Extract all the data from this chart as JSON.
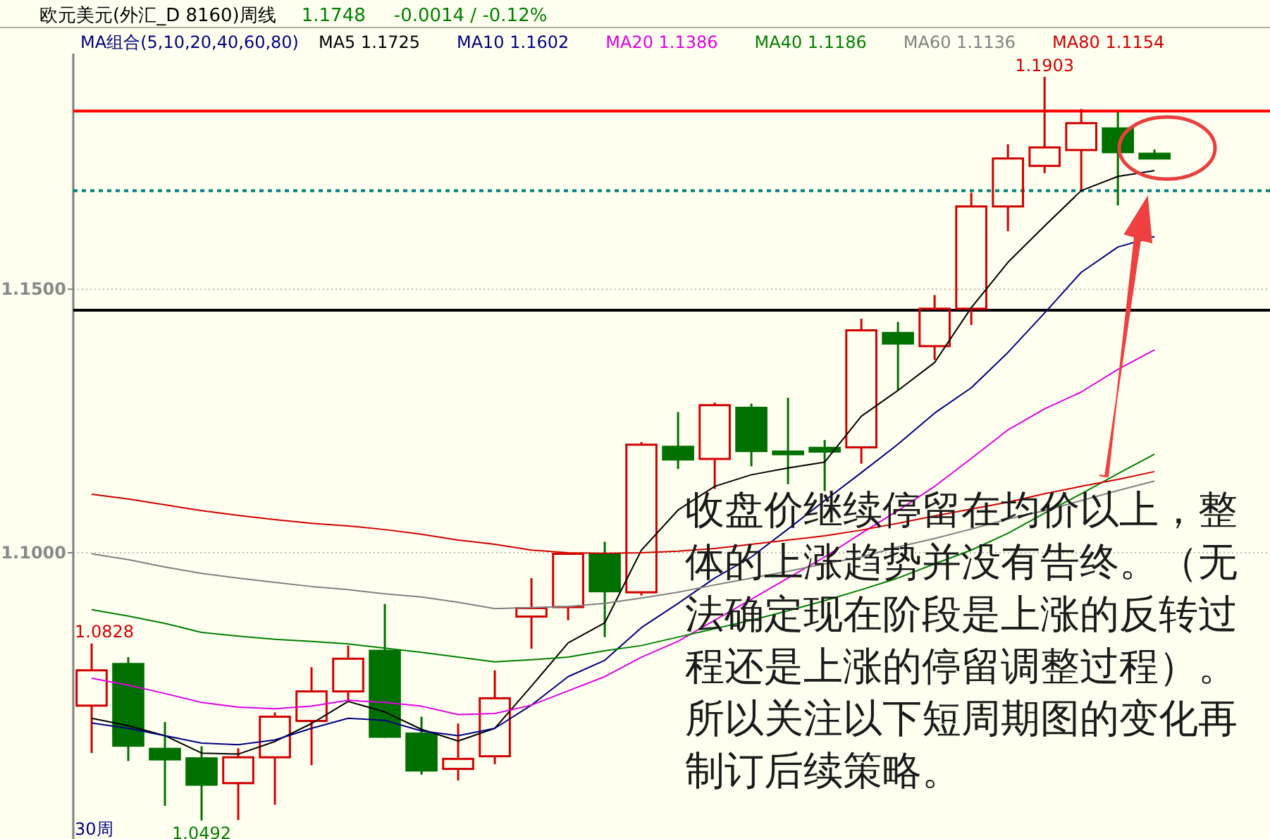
{
  "chart_data": {
    "type": "candlestick",
    "title": "欧元美元(外汇_D 8160)周线",
    "legend_title": "MA组合(5,10,20,40,60,80)",
    "legend": "top",
    "grid": "y",
    "tick_labels": "y",
    "categories": [
      null,
      null,
      null,
      null,
      null,
      null,
      null,
      null,
      null,
      null,
      null,
      null,
      null,
      null,
      null,
      null,
      null,
      null,
      null,
      null,
      null,
      null,
      null,
      null,
      null,
      null,
      null,
      null,
      null,
      null
    ],
    "ohlc": [
      [
        1.071,
        1.0828,
        1.062,
        1.0777
      ],
      [
        1.0789,
        1.0802,
        1.0605,
        1.0634
      ],
      [
        1.0628,
        1.0679,
        1.052,
        1.0608
      ],
      [
        1.061,
        1.0633,
        1.0492,
        1.056
      ],
      [
        1.0563,
        1.0629,
        1.0493,
        1.0612
      ],
      [
        1.0612,
        1.0697,
        1.0522,
        1.0689
      ],
      [
        1.0681,
        1.0783,
        1.0597,
        1.0737
      ],
      [
        1.0737,
        1.0824,
        1.0718,
        1.0799
      ],
      [
        1.0814,
        1.0903,
        1.0649,
        1.0651
      ],
      [
        1.0657,
        1.0689,
        1.0579,
        1.0587
      ],
      [
        1.059,
        1.0676,
        1.0568,
        1.0609
      ],
      [
        1.0614,
        1.0777,
        1.0599,
        1.0724
      ],
      [
        1.0879,
        1.0952,
        1.0818,
        1.0895
      ],
      [
        1.0897,
        1.0998,
        1.0872,
        1.0998
      ],
      [
        1.0998,
        1.1021,
        1.084,
        1.0927
      ],
      [
        1.0925,
        1.121,
        1.0919,
        1.1205
      ],
      [
        1.1201,
        1.1267,
        1.1159,
        1.1177
      ],
      [
        1.1178,
        1.1285,
        1.1121,
        1.128
      ],
      [
        1.1275,
        1.1283,
        1.1164,
        1.1193
      ],
      [
        1.1192,
        1.1294,
        1.113,
        1.1187
      ],
      [
        1.1199,
        1.1214,
        1.1117,
        1.1192
      ],
      [
        1.12,
        1.1444,
        1.1169,
        1.1422
      ],
      [
        1.1417,
        1.1438,
        1.1308,
        1.1397
      ],
      [
        1.1392,
        1.1489,
        1.1366,
        1.1463
      ],
      [
        1.1463,
        1.1683,
        1.1432,
        1.1657
      ],
      [
        1.1657,
        1.1775,
        1.161,
        1.1748
      ],
      [
        1.1734,
        1.1903,
        1.172,
        1.1769
      ],
      [
        1.1764,
        1.1842,
        1.1689,
        1.1815
      ],
      [
        1.1805,
        1.1836,
        1.1659,
        1.176
      ],
      [
        1.1757,
        1.1765,
        1.1747,
        1.1748
      ]
    ],
    "series": [
      {
        "name": "MA5 1.1725",
        "type": "line",
        "color": "#000000",
        "values": [
          1.0686,
          1.0672,
          1.0653,
          1.062,
          1.0618,
          1.0642,
          1.0676,
          1.0718,
          1.0698,
          1.0665,
          1.0643,
          1.0667,
          1.0747,
          1.0829,
          1.0867,
          1.1005,
          1.1081,
          1.1126,
          1.1148,
          1.1161,
          1.1172,
          1.1259,
          1.1308,
          1.1361,
          1.1465,
          1.1551,
          1.162,
          1.1687,
          1.1714,
          1.1725
        ]
      },
      {
        "name": "MA10 1.1602",
        "type": "line",
        "color": "#000080",
        "values": [
          1.0677,
          1.0667,
          1.0653,
          1.0639,
          1.0636,
          1.0645,
          1.0667,
          1.0686,
          1.0682,
          1.0662,
          1.0653,
          1.0667,
          1.0711,
          1.0765,
          1.0796,
          1.0858,
          1.0904,
          1.0952,
          1.0992,
          1.1045,
          1.1099,
          1.1152,
          1.1206,
          1.1265,
          1.1313,
          1.138,
          1.1455,
          1.1532,
          1.158,
          1.16
        ]
      },
      {
        "name": "MA20 1.1386",
        "type": "line",
        "color": "#e000e0",
        "values": [
          1.0762,
          1.0749,
          1.0733,
          1.0716,
          1.0707,
          1.0704,
          1.0709,
          1.072,
          1.0716,
          1.0709,
          1.0693,
          1.0695,
          1.0711,
          1.0738,
          1.0765,
          1.0802,
          1.0832,
          1.0872,
          1.0912,
          1.0952,
          1.0992,
          1.1037,
          1.108,
          1.1126,
          1.1179,
          1.1233,
          1.1273,
          1.1305,
          1.1348,
          1.1385
        ]
      },
      {
        "name": "MA40 1.1186",
        "type": "line",
        "color": "#008000",
        "values": [
          1.0892,
          1.088,
          1.0866,
          1.0849,
          1.0842,
          1.0836,
          1.0832,
          1.0827,
          1.0819,
          1.0811,
          1.0802,
          1.0793,
          1.0797,
          1.0802,
          1.0814,
          1.0824,
          1.084,
          1.0856,
          1.0872,
          1.089,
          1.0909,
          1.093,
          1.0952,
          1.0979,
          1.1005,
          1.1037,
          1.1075,
          1.1112,
          1.115,
          1.1187
        ]
      },
      {
        "name": "MA60 1.1136",
        "type": "line",
        "color": "#808080",
        "values": [
          1.0998,
          1.0987,
          1.0973,
          1.0961,
          1.0952,
          1.0944,
          1.0936,
          1.093,
          1.0922,
          1.0916,
          1.0906,
          1.0894,
          1.0896,
          1.0898,
          1.0904,
          1.0914,
          1.0925,
          1.0939,
          1.0952,
          1.0965,
          1.0979,
          1.0992,
          1.1011,
          1.1027,
          1.1045,
          1.1064,
          1.108,
          1.1099,
          1.1118,
          1.1136
        ]
      },
      {
        "name": "MA80 1.1154",
        "type": "line",
        "color": "#d00000",
        "values": [
          1.1111,
          1.1102,
          1.1091,
          1.108,
          1.1071,
          1.1063,
          1.1056,
          1.1051,
          1.1044,
          1.1035,
          1.1024,
          1.1016,
          1.1005,
          1.1,
          1.0999,
          1.1,
          1.1003,
          1.1008,
          1.1016,
          1.1024,
          1.1032,
          1.1043,
          1.1056,
          1.107,
          1.1083,
          1.1096,
          1.1112,
          1.1126,
          1.1139,
          1.1154
        ]
      }
    ],
    "ylim": [
      1.0457,
      1.1947
    ],
    "yticks": [
      {
        "value": 1.1,
        "label": "1.1000"
      },
      {
        "value": 1.15,
        "label": "1.1500"
      }
    ],
    "ref_lines": [
      {
        "axis": "y",
        "value": 1.1838,
        "color": "#ff0000",
        "line_style": "solid"
      },
      {
        "axis": "y",
        "value": 1.146,
        "color": "#000000",
        "line_style": "solid"
      },
      {
        "axis": "y",
        "value": 1.1687,
        "color": "#008080",
        "line_style": "dotted"
      }
    ],
    "annotations": [
      "1.1748",
      "-0.0014 / -0.12%",
      {
        "text": "1.1903",
        "y": 1.1903
      },
      "1.0828",
      {
        "text": "1.0492",
        "y": 1.0492
      },
      "30周",
      "收盘价继续停留在均价以上，整体的上涨趋势并没有告终。（无法确定现在阶段是上涨的反转过程还是上涨的停留调整过程）。所以关注以下短周期图的变化再制订后续策略。"
    ]
  }
}
